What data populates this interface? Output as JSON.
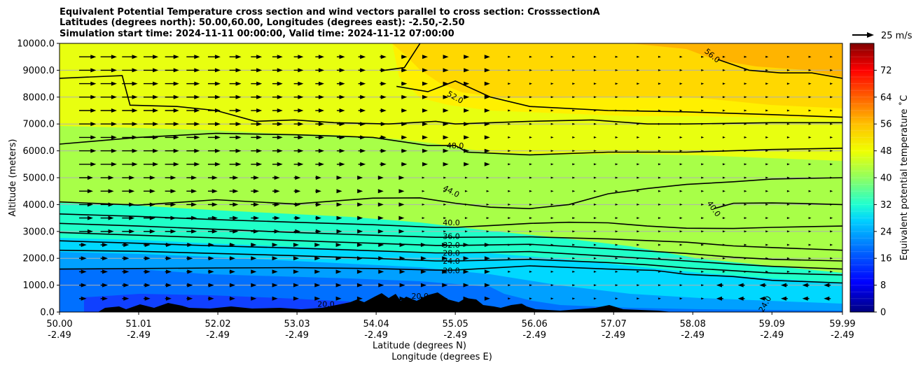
{
  "chart_data": {
    "type": "heatmap",
    "title_lines": [
      "Equivalent Potential Temperature cross section and wind vectors parallel to cross section: CrosssectionA",
      "Latitudes (degrees north): 50.00,60.00, Longitudes (degrees east): -2.50,-2.50",
      "Simulation start time: 2024-11-11 00:00:00, Valid time: 2024-11-12 07:00:00"
    ],
    "ylabel": "Altitude (meters)",
    "xlabel_lat": "Latitude (degrees N)",
    "xlabel_lon": "Longitude (degrees E)",
    "ylim": [
      0,
      10000
    ],
    "xlim": [
      50.0,
      59.99
    ],
    "yticks": [
      {
        "value": 0,
        "label": "0.0"
      },
      {
        "value": 1000,
        "label": "1000.0"
      },
      {
        "value": 2000,
        "label": "2000.0"
      },
      {
        "value": 3000,
        "label": "3000.0"
      },
      {
        "value": 4000,
        "label": "4000.0"
      },
      {
        "value": 5000,
        "label": "5000.0"
      },
      {
        "value": 6000,
        "label": "6000.0"
      },
      {
        "value": 7000,
        "label": "7000.0"
      },
      {
        "value": 8000,
        "label": "8000.0"
      },
      {
        "value": 9000,
        "label": "9000.0"
      },
      {
        "value": 10000,
        "label": "10000.0"
      }
    ],
    "xticks": [
      {
        "value": 50.0,
        "lat": "50.00",
        "lon": "-2.49"
      },
      {
        "value": 51.01,
        "lat": "51.01",
        "lon": "-2.49"
      },
      {
        "value": 52.02,
        "lat": "52.02",
        "lon": "-2.49"
      },
      {
        "value": 53.03,
        "lat": "53.03",
        "lon": "-2.49"
      },
      {
        "value": 54.04,
        "lat": "54.04",
        "lon": "-2.49"
      },
      {
        "value": 55.05,
        "lat": "55.05",
        "lon": "-2.49"
      },
      {
        "value": 56.06,
        "lat": "56.06",
        "lon": "-2.49"
      },
      {
        "value": 57.07,
        "lat": "57.07",
        "lon": "-2.49"
      },
      {
        "value": 58.08,
        "lat": "58.08",
        "lon": "-2.49"
      },
      {
        "value": 59.09,
        "lat": "59.09",
        "lon": "-2.49"
      },
      {
        "value": 59.99,
        "lat": "59.99",
        "lon": "-2.49"
      }
    ],
    "grid": "horizontal",
    "colorbar": {
      "label": "Equivalent potential temperature ˚C",
      "range": [
        0,
        80
      ],
      "ticks": [
        0,
        8,
        16,
        24,
        32,
        40,
        48,
        56,
        64,
        72
      ]
    },
    "contours": [
      {
        "level": 20.0,
        "label": "20.0",
        "points": [
          [
            50.0,
            1600
          ],
          [
            51.0,
            1620
          ],
          [
            52.0,
            1640
          ],
          [
            53.0,
            1650
          ],
          [
            54.0,
            1620
          ],
          [
            54.8,
            1560
          ],
          [
            55.05,
            1560
          ],
          [
            56.0,
            1720
          ],
          [
            57.0,
            1600
          ],
          [
            57.6,
            1550
          ],
          [
            58.0,
            1400
          ],
          [
            58.6,
            1320
          ],
          [
            59.09,
            1180
          ],
          [
            59.99,
            1080
          ]
        ]
      },
      {
        "level": 24.0,
        "label": "24.0",
        "points": [
          [
            50.0,
            2300
          ],
          [
            51.0,
            2260
          ],
          [
            52.0,
            2180
          ],
          [
            53.0,
            2100
          ],
          [
            54.0,
            2000
          ],
          [
            54.8,
            1900
          ],
          [
            55.05,
            1900
          ],
          [
            56.0,
            1960
          ],
          [
            57.0,
            1840
          ],
          [
            57.5,
            1760
          ],
          [
            58.0,
            1640
          ],
          [
            58.6,
            1540
          ],
          [
            59.09,
            1450
          ],
          [
            59.99,
            1380
          ]
        ]
      },
      {
        "level": 28.0,
        "label": "28.0",
        "points": [
          [
            50.0,
            2650
          ],
          [
            51.0,
            2560
          ],
          [
            52.0,
            2460
          ],
          [
            53.0,
            2380
          ],
          [
            54.0,
            2280
          ],
          [
            54.8,
            2200
          ],
          [
            55.05,
            2200
          ],
          [
            56.0,
            2250
          ],
          [
            57.0,
            2080
          ],
          [
            58.0,
            1900
          ],
          [
            58.6,
            1780
          ],
          [
            59.09,
            1700
          ],
          [
            59.99,
            1600
          ]
        ]
      },
      {
        "level": 32.0,
        "label": "32.0",
        "points": [
          [
            50.0,
            2960
          ],
          [
            51.0,
            2860
          ],
          [
            52.0,
            2760
          ],
          [
            53.0,
            2660
          ],
          [
            54.0,
            2560
          ],
          [
            54.8,
            2480
          ],
          [
            55.05,
            2480
          ],
          [
            56.0,
            2520
          ],
          [
            57.0,
            2360
          ],
          [
            58.0,
            2180
          ],
          [
            58.6,
            2040
          ],
          [
            59.09,
            1960
          ],
          [
            59.99,
            1900
          ]
        ]
      },
      {
        "level": 36.0,
        "label": "36.0",
        "points": [
          [
            50.0,
            3300
          ],
          [
            51.0,
            3200
          ],
          [
            52.0,
            3080
          ],
          [
            53.0,
            2960
          ],
          [
            54.0,
            2860
          ],
          [
            54.8,
            2780
          ],
          [
            55.05,
            2780
          ],
          [
            56.0,
            2800
          ],
          [
            57.0,
            2720
          ],
          [
            58.0,
            2600
          ],
          [
            58.6,
            2460
          ],
          [
            59.09,
            2400
          ],
          [
            59.99,
            2300
          ]
        ]
      },
      {
        "level": 40.0,
        "label": "40.0",
        "points": [
          [
            50.0,
            3650
          ],
          [
            51.0,
            3560
          ],
          [
            52.0,
            3440
          ],
          [
            53.0,
            3340
          ],
          [
            54.0,
            3250
          ],
          [
            54.8,
            3150
          ],
          [
            55.05,
            3150
          ],
          [
            55.5,
            3220
          ],
          [
            56.0,
            3300
          ],
          [
            56.5,
            3340
          ],
          [
            57.0,
            3320
          ],
          [
            57.5,
            3200
          ],
          [
            58.0,
            3120
          ],
          [
            58.6,
            3110
          ],
          [
            59.09,
            3150
          ],
          [
            59.99,
            3200
          ]
        ]
      },
      {
        "level": 40.0,
        "label": "40.0",
        "points": [
          [
            58.35,
            3850
          ],
          [
            58.6,
            4050
          ],
          [
            59.09,
            4060
          ],
          [
            59.5,
            4040
          ],
          [
            59.99,
            4000
          ]
        ]
      },
      {
        "level": 44.0,
        "label": "44.0",
        "points": [
          [
            50.0,
            4100
          ],
          [
            51.0,
            3980
          ],
          [
            52.0,
            4180
          ],
          [
            53.0,
            4020
          ],
          [
            54.0,
            4240
          ],
          [
            54.6,
            4250
          ],
          [
            55.05,
            4050
          ],
          [
            55.5,
            3900
          ],
          [
            56.0,
            3850
          ],
          [
            56.5,
            4000
          ],
          [
            57.0,
            4400
          ],
          [
            57.5,
            4600
          ],
          [
            58.0,
            4750
          ],
          [
            58.6,
            4850
          ],
          [
            59.09,
            4950
          ],
          [
            59.99,
            5000
          ]
        ]
      },
      {
        "level": 48.0,
        "label": "48.0",
        "points": [
          [
            50.0,
            6250
          ],
          [
            51.0,
            6500
          ],
          [
            52.0,
            6650
          ],
          [
            53.0,
            6600
          ],
          [
            54.0,
            6500
          ],
          [
            54.7,
            6200
          ],
          [
            55.05,
            6200
          ],
          [
            55.2,
            5950
          ],
          [
            56.0,
            5850
          ],
          [
            57.0,
            5950
          ],
          [
            58.0,
            5950
          ],
          [
            59.09,
            6050
          ],
          [
            59.99,
            6100
          ]
        ]
      },
      {
        "level": 52.0,
        "label": "52.0",
        "points": [
          [
            50.0,
            8700
          ],
          [
            50.8,
            8800
          ],
          [
            50.9,
            7700
          ],
          [
            51.5,
            7650
          ],
          [
            52.0,
            7500
          ],
          [
            52.5,
            7100
          ],
          [
            53.0,
            7150
          ],
          [
            53.5,
            7050
          ],
          [
            54.2,
            7000
          ],
          [
            54.8,
            7100
          ],
          [
            55.05,
            7000
          ],
          [
            56.0,
            7100
          ],
          [
            56.8,
            7150
          ],
          [
            57.5,
            7000
          ],
          [
            58.0,
            7000
          ],
          [
            59.09,
            7050
          ],
          [
            59.99,
            7050
          ]
        ]
      },
      {
        "level": 52.0,
        "label": "52.0",
        "points": [
          [
            54.15,
            9000
          ],
          [
            54.4,
            9100
          ],
          [
            54.6,
            10000
          ]
        ]
      },
      {
        "level": 52.0,
        "label": "52.0",
        "points": [
          [
            54.3,
            8400
          ],
          [
            54.7,
            8200
          ],
          [
            55.05,
            8600
          ],
          [
            55.5,
            8000
          ],
          [
            56.0,
            7650
          ],
          [
            57.0,
            7500
          ],
          [
            58.0,
            7450
          ],
          [
            59.09,
            7350
          ],
          [
            59.99,
            7250
          ]
        ]
      },
      {
        "level": 56.0,
        "label": "56.0",
        "points": [
          [
            58.4,
            9400
          ],
          [
            58.8,
            9000
          ],
          [
            59.2,
            8900
          ],
          [
            59.6,
            8900
          ],
          [
            59.99,
            8700
          ]
        ]
      }
    ],
    "contour_labels": [
      {
        "text": "56.0",
        "x": 58.33,
        "y": 9550,
        "rotation": 40
      },
      {
        "text": "52.0",
        "x": 55.05,
        "y": 8000,
        "rotation": 30
      },
      {
        "text": "48.0",
        "x": 55.05,
        "y": 6200,
        "rotation": 0
      },
      {
        "text": "44.0",
        "x": 55.0,
        "y": 4500,
        "rotation": 28
      },
      {
        "text": "40.0",
        "x": 58.35,
        "y": 3850,
        "rotation": 55
      },
      {
        "text": "40.0",
        "x": 55.0,
        "y": 3330,
        "rotation": 0
      },
      {
        "text": "36.0",
        "x": 55.0,
        "y": 2820,
        "rotation": 0
      },
      {
        "text": "32.0",
        "x": 55.0,
        "y": 2500,
        "rotation": 0
      },
      {
        "text": "28.0",
        "x": 55.0,
        "y": 2200,
        "rotation": 0
      },
      {
        "text": "24.0",
        "x": 55.0,
        "y": 1900,
        "rotation": 0
      },
      {
        "text": "20.0",
        "x": 55.0,
        "y": 1550,
        "rotation": 0
      },
      {
        "text": "20.0",
        "x": 54.6,
        "y": 600,
        "rotation": 0
      },
      {
        "text": "20.0",
        "x": 53.4,
        "y": 300,
        "rotation": 0
      },
      {
        "text": "24.0",
        "x": 59.0,
        "y": 300,
        "rotation": -60
      }
    ],
    "wind_quiver_key": {
      "label": "25 m/s",
      "speed": 25
    },
    "terrain": "black silhouette along the surface"
  }
}
